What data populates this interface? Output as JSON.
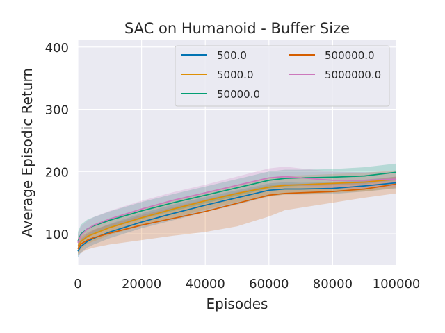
{
  "chart_data": {
    "type": "line",
    "title": "SAC on Humanoid - Buffer Size",
    "xlabel": "Episodes",
    "ylabel": "Average Episodic Return",
    "xlim": [
      0,
      100000
    ],
    "ylim": [
      50,
      412
    ],
    "xticks": [
      0,
      20000,
      40000,
      60000,
      80000,
      100000
    ],
    "xtick_labels": [
      "0",
      "20000",
      "40000",
      "60000",
      "80000",
      "100000"
    ],
    "yticks": [
      100,
      200,
      300,
      400
    ],
    "ytick_labels": [
      "100",
      "200",
      "300",
      "400"
    ],
    "grid": true,
    "legend_position": "upper-right",
    "legend_columns": 2,
    "series": [
      {
        "name": "500.0",
        "color": "#0173b2",
        "x": [
          0,
          1000,
          3000,
          5000,
          10000,
          20000,
          30000,
          40000,
          50000,
          60000,
          65000,
          70000,
          80000,
          90000,
          100000
        ],
        "y": [
          72,
          80,
          88,
          93,
          103,
          119,
          133,
          146,
          158,
          170,
          172,
          172,
          173,
          177,
          182
        ],
        "lower": [
          62,
          70,
          78,
          83,
          93,
          109,
          122,
          135,
          147,
          160,
          163,
          163,
          164,
          168,
          173
        ],
        "upper": [
          84,
          92,
          100,
          106,
          116,
          133,
          147,
          159,
          170,
          181,
          183,
          182,
          183,
          187,
          192
        ]
      },
      {
        "name": "5000.0",
        "color": "#de8f05",
        "x": [
          0,
          1000,
          3000,
          5000,
          10000,
          20000,
          30000,
          40000,
          50000,
          60000,
          65000,
          70000,
          80000,
          90000,
          100000
        ],
        "y": [
          80,
          88,
          96,
          100,
          110,
          126,
          140,
          153,
          165,
          175,
          178,
          179,
          181,
          183,
          188
        ],
        "lower": [
          68,
          76,
          84,
          88,
          98,
          113,
          126,
          139,
          151,
          160,
          163,
          164,
          166,
          168,
          174
        ],
        "upper": [
          93,
          101,
          109,
          114,
          124,
          140,
          154,
          167,
          179,
          190,
          193,
          194,
          196,
          198,
          202
        ]
      },
      {
        "name": "50000.0",
        "color": "#029e73",
        "x": [
          0,
          1000,
          3000,
          5000,
          10000,
          20000,
          30000,
          40000,
          50000,
          60000,
          65000,
          70000,
          80000,
          90000,
          100000
        ],
        "y": [
          88,
          100,
          108,
          113,
          122,
          137,
          150,
          162,
          174,
          186,
          189,
          190,
          191,
          193,
          199
        ],
        "lower": [
          74,
          86,
          94,
          100,
          109,
          124,
          137,
          149,
          161,
          173,
          176,
          177,
          178,
          180,
          186
        ],
        "upper": [
          103,
          115,
          123,
          127,
          136,
          151,
          164,
          176,
          188,
          200,
          203,
          203,
          204,
          207,
          213
        ]
      },
      {
        "name": "500000.0",
        "color": "#d55e00",
        "x": [
          0,
          1000,
          3000,
          5000,
          10000,
          20000,
          30000,
          40000,
          50000,
          60000,
          65000,
          70000,
          80000,
          90000,
          100000
        ],
        "y": [
          76,
          84,
          90,
          94,
          101,
          114,
          125,
          136,
          149,
          162,
          165,
          166,
          168,
          172,
          180
        ],
        "lower": [
          66,
          70,
          75,
          78,
          83,
          90,
          97,
          103,
          112,
          128,
          138,
          142,
          150,
          158,
          165
        ],
        "upper": [
          88,
          96,
          102,
          107,
          115,
          130,
          143,
          155,
          167,
          178,
          180,
          180,
          182,
          185,
          192
        ]
      },
      {
        "name": "5000000.0",
        "color": "#cc78bc",
        "x": [
          0,
          1000,
          3000,
          5000,
          10000,
          20000,
          30000,
          40000,
          50000,
          60000,
          65000,
          70000,
          80000,
          90000,
          100000
        ],
        "y": [
          86,
          98,
          108,
          114,
          124,
          140,
          154,
          166,
          178,
          190,
          192,
          190,
          186,
          186,
          188
        ],
        "lower": [
          74,
          86,
          96,
          102,
          112,
          127,
          141,
          153,
          165,
          177,
          179,
          177,
          173,
          173,
          175
        ],
        "upper": [
          100,
          112,
          121,
          127,
          137,
          153,
          167,
          179,
          192,
          205,
          208,
          205,
          200,
          199,
          201
        ]
      }
    ]
  }
}
